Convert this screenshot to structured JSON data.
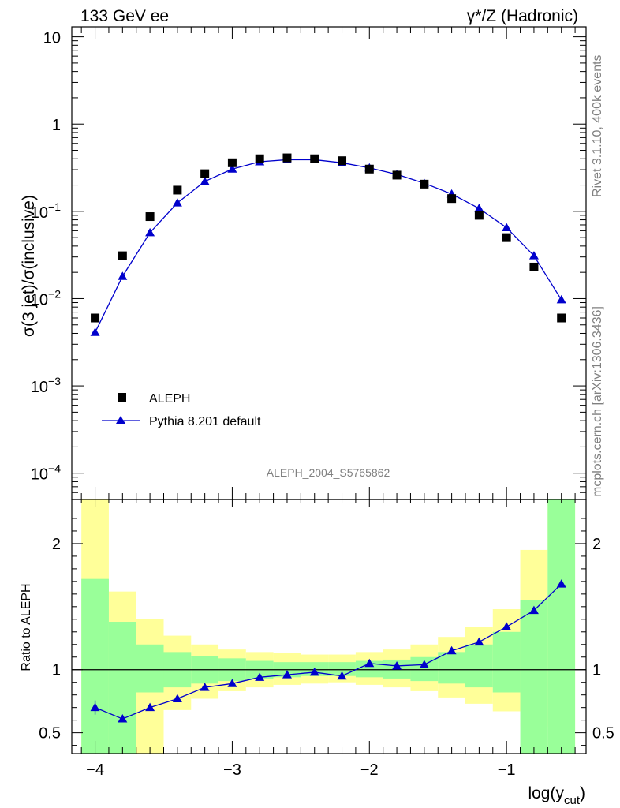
{
  "header": {
    "left": "133 GeV ee",
    "right": "γ*/Z (Hadronic)"
  },
  "side_labels": {
    "rivet": "Rivet 3.1.10,  400k events",
    "mcplots": "mcplots.cern.ch [arXiv:1306.3436]"
  },
  "watermark": "ALEPH_2004_S5765862",
  "chart_data": [
    {
      "type": "scatter",
      "panel": "main",
      "ylabel": "σ(3 jet)/σ(inclusive)",
      "yscale": "log",
      "ylim": [
        5e-05,
        13
      ],
      "xlim": [
        -4.17,
        -0.42
      ],
      "yticks": [
        {
          "v": 10,
          "label": "10"
        },
        {
          "v": 1,
          "label": "1"
        },
        {
          "v": 0.1,
          "base": "10",
          "exp": "−1"
        },
        {
          "v": 0.01,
          "base": "10",
          "exp": "−2"
        },
        {
          "v": 0.001,
          "base": "10",
          "exp": "−3"
        },
        {
          "v": 0.0001,
          "base": "10",
          "exp": "−4"
        }
      ],
      "series": [
        {
          "name": "ALEPH",
          "marker": "square",
          "color": "#000000",
          "x": [
            -4.0,
            -3.8,
            -3.6,
            -3.4,
            -3.2,
            -3.0,
            -2.8,
            -2.6,
            -2.4,
            -2.2,
            -2.0,
            -1.8,
            -1.6,
            -1.4,
            -1.2,
            -1.0,
            -0.8,
            -0.6
          ],
          "y": [
            0.006,
            0.031,
            0.087,
            0.175,
            0.27,
            0.36,
            0.4,
            0.41,
            0.4,
            0.38,
            0.305,
            0.26,
            0.205,
            0.14,
            0.09,
            0.05,
            0.023,
            0.006
          ]
        },
        {
          "name": "Pythia 8.201 default",
          "marker": "triangle",
          "color": "#0000cc",
          "x": [
            -4.0,
            -3.8,
            -3.6,
            -3.4,
            -3.2,
            -3.0,
            -2.8,
            -2.6,
            -2.4,
            -2.2,
            -2.0,
            -1.8,
            -1.6,
            -1.4,
            -1.2,
            -1.0,
            -0.8,
            -0.6
          ],
          "y": [
            0.0041,
            0.018,
            0.057,
            0.125,
            0.22,
            0.305,
            0.37,
            0.39,
            0.39,
            0.36,
            0.315,
            0.265,
            0.21,
            0.158,
            0.108,
            0.065,
            0.031,
            0.0097
          ]
        }
      ]
    },
    {
      "type": "line",
      "panel": "ratio",
      "ylabel": "Ratio to ALEPH",
      "xlabel": "log(y_cut)",
      "ylim": [
        0.335,
        2.35
      ],
      "xlim": [
        -4.17,
        -0.42
      ],
      "xticks": [
        {
          "v": -4,
          "label": "−4"
        },
        {
          "v": -3,
          "label": "−3"
        },
        {
          "v": -2,
          "label": "−2"
        },
        {
          "v": -1,
          "label": "−1"
        }
      ],
      "yticks": [
        {
          "v": 2,
          "label": "2"
        },
        {
          "v": 1,
          "label": "1"
        },
        {
          "v": 0.5,
          "label": "0.5"
        }
      ],
      "bin_edges": [
        -4.1,
        -3.9,
        -3.7,
        -3.5,
        -3.3,
        -3.1,
        -2.9,
        -2.7,
        -2.5,
        -2.3,
        -2.1,
        -1.9,
        -1.7,
        -1.5,
        -1.3,
        -1.1,
        -0.9,
        -0.7,
        -0.5
      ],
      "band_stat": {
        "color": "#99ff99",
        "lo": [
          0.3,
          0.3,
          0.82,
          0.86,
          0.89,
          0.91,
          0.93,
          0.94,
          0.95,
          0.95,
          0.94,
          0.93,
          0.91,
          0.89,
          0.86,
          0.82,
          0.3,
          0.3
        ],
        "hi": [
          1.72,
          1.38,
          1.2,
          1.14,
          1.11,
          1.09,
          1.07,
          1.06,
          1.06,
          1.06,
          1.07,
          1.08,
          1.1,
          1.14,
          1.2,
          1.3,
          1.55,
          2.4
        ]
      },
      "band_total": {
        "color": "#ffff99",
        "lo": [
          0.3,
          0.3,
          0.3,
          0.68,
          0.77,
          0.83,
          0.86,
          0.88,
          0.89,
          0.9,
          0.88,
          0.86,
          0.83,
          0.78,
          0.73,
          0.67,
          0.55,
          0.3
        ],
        "hi": [
          2.4,
          1.62,
          1.4,
          1.27,
          1.2,
          1.16,
          1.14,
          1.13,
          1.12,
          1.12,
          1.14,
          1.16,
          1.2,
          1.26,
          1.34,
          1.48,
          1.95,
          2.4
        ]
      },
      "reference": 1.0,
      "series": [
        {
          "name": "Pythia 8.201 default",
          "color": "#0000cc",
          "x": [
            -4.0,
            -3.8,
            -3.6,
            -3.4,
            -3.2,
            -3.0,
            -2.8,
            -2.6,
            -2.4,
            -2.2,
            -2.0,
            -1.8,
            -1.6,
            -1.4,
            -1.2,
            -1.0,
            -0.8,
            -0.6
          ],
          "y": [
            0.7,
            0.61,
            0.7,
            0.77,
            0.86,
            0.89,
            0.94,
            0.96,
            0.98,
            0.95,
            1.05,
            1.03,
            1.04,
            1.15,
            1.22,
            1.34,
            1.47,
            1.68
          ]
        }
      ]
    }
  ]
}
